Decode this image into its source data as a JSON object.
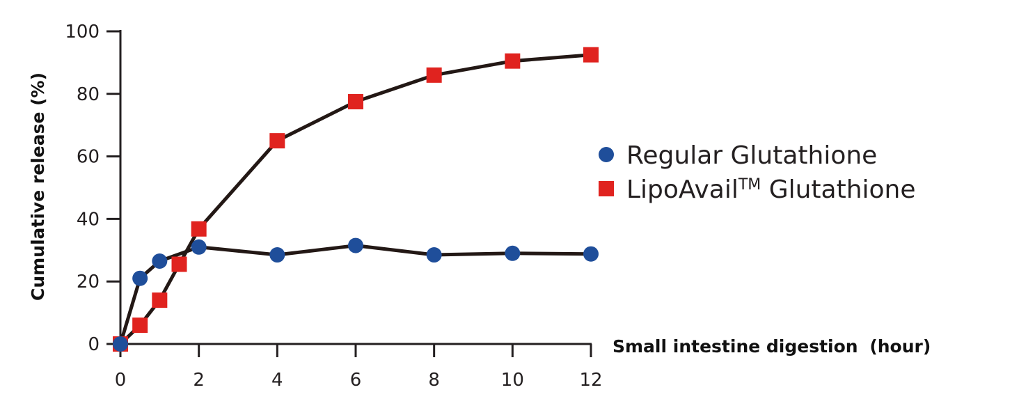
{
  "chart_data": {
    "type": "line",
    "title": "",
    "xlabel": "Small intestine digestion",
    "xlabel_unit": "(hour)",
    "ylabel": "Cumulative release (%)",
    "xlim": [
      0,
      12
    ],
    "ylim": [
      0,
      100
    ],
    "xticks": [
      0,
      2,
      4,
      6,
      8,
      10,
      12
    ],
    "yticks": [
      0,
      20,
      40,
      60,
      80,
      100
    ],
    "grid": false,
    "legend_position": "right",
    "series": [
      {
        "name": "Regular Glutathione",
        "marker": "circle",
        "color": "#1f4e9a",
        "x": [
          0,
          0.5,
          1,
          2,
          4,
          6,
          8,
          10,
          12
        ],
        "y": [
          0,
          21,
          26.5,
          31,
          28.5,
          31.5,
          28.5,
          29,
          28.8
        ]
      },
      {
        "name": "LipoAvail",
        "name_suffix": "TM",
        "name_tail": " Glutathione",
        "marker": "square",
        "color": "#e0231f",
        "x": [
          0,
          0.5,
          1,
          1.5,
          2,
          4,
          6,
          8,
          10,
          12
        ],
        "y": [
          0,
          6,
          14,
          25.5,
          36.8,
          65,
          77.5,
          86,
          90.5,
          92.5
        ]
      }
    ],
    "line_color": "#231815"
  }
}
